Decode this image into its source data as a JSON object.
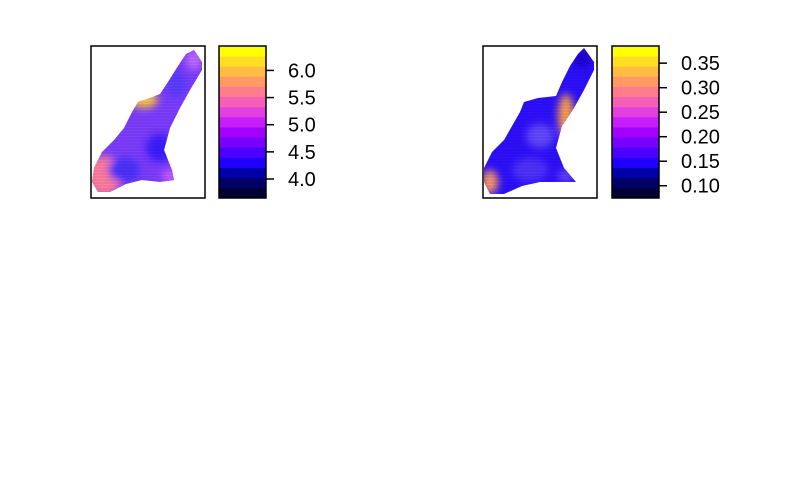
{
  "chart_data": [
    {
      "type": "heatmap",
      "title": "",
      "xlabel": "",
      "ylabel": "",
      "grid": false,
      "colorbar": {
        "placement": "right",
        "range": [
          3.65,
          6.45
        ],
        "bands": 15,
        "ticks": [
          4.0,
          4.5,
          5.0,
          5.5,
          6.0
        ],
        "tick_labels": [
          "4.0",
          "4.5",
          "5.0",
          "5.5",
          "6.0"
        ],
        "palette": [
          "#000033",
          "#000066",
          "#0000aa",
          "#1f00ff",
          "#4c00ff",
          "#7700ff",
          "#a200ff",
          "#c71cff",
          "#e440e0",
          "#f55fb6",
          "#ff7b8d",
          "#ff9a66",
          "#ffbb44",
          "#ffdd22",
          "#ffff00"
        ]
      },
      "field": {
        "base_value": 4.7,
        "hotspots": [
          {
            "location": "lower-left edge",
            "value": 6.0
          },
          {
            "location": "upper-left shoulder",
            "value": 5.9
          },
          {
            "location": "upper-right tip",
            "value": 5.2
          }
        ]
      }
    },
    {
      "type": "heatmap",
      "title": "",
      "xlabel": "",
      "ylabel": "",
      "grid": false,
      "colorbar": {
        "placement": "right",
        "range": [
          0.075,
          0.385
        ],
        "bands": 15,
        "ticks": [
          0.1,
          0.15,
          0.2,
          0.25,
          0.3,
          0.35
        ],
        "tick_labels": [
          "0.10",
          "0.15",
          "0.20",
          "0.25",
          "0.30",
          "0.35"
        ],
        "palette": [
          "#000033",
          "#000066",
          "#0000aa",
          "#1f00ff",
          "#4c00ff",
          "#7700ff",
          "#a200ff",
          "#c71cff",
          "#e440e0",
          "#f55fb6",
          "#ff7b8d",
          "#ff9a66",
          "#ffbb44",
          "#ffdd22",
          "#ffff00"
        ]
      },
      "field": {
        "base_value": 0.15,
        "hotspots": [
          {
            "location": "right edge",
            "value": 0.31
          },
          {
            "location": "lower-left edge",
            "value": 0.3
          }
        ]
      }
    }
  ]
}
